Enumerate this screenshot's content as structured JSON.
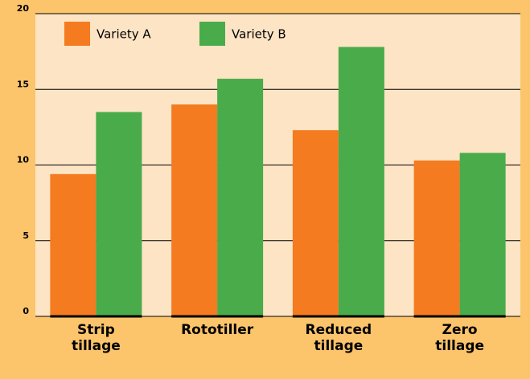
{
  "chart_data": {
    "type": "bar",
    "categories": [
      "Strip tillage",
      "Rototiller",
      "Reduced tillage",
      "Zero tillage"
    ],
    "series": [
      {
        "name": "Variety A",
        "color": "#f47b20",
        "values": [
          9.4,
          14.0,
          12.3,
          10.3
        ]
      },
      {
        "name": "Variety B",
        "color": "#4aab4a",
        "values": [
          13.5,
          15.7,
          17.8,
          10.8
        ]
      }
    ],
    "ylim": [
      0,
      20
    ],
    "yticks": [
      0,
      5,
      10,
      15,
      20
    ],
    "grid": true,
    "legend": "top-left"
  }
}
